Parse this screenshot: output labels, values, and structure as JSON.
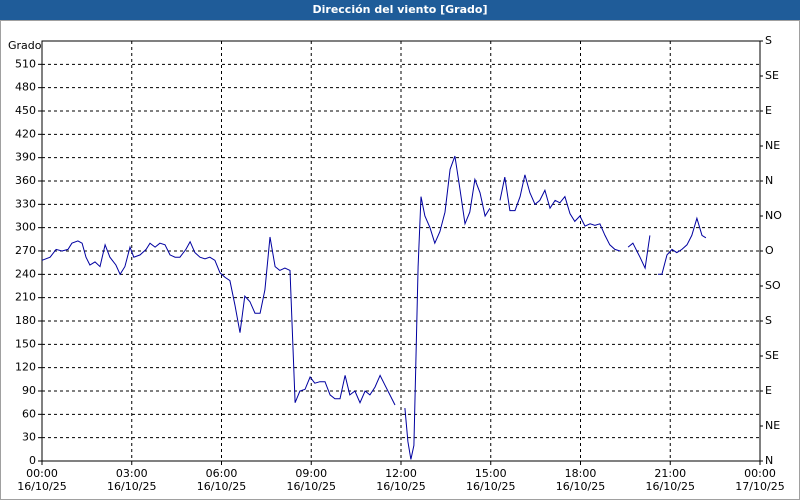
{
  "chart_data": {
    "type": "line",
    "title": "Dirección del viento [Grado]",
    "ylabel": "Grado",
    "xlim": [
      0,
      24
    ],
    "ylim": [
      0,
      540
    ],
    "y2lim": [
      0,
      540
    ],
    "grid": true,
    "xticks": [
      {
        "value": 0,
        "label": "00:00\n16/10/25"
      },
      {
        "value": 3,
        "label": "03:00\n16/10/25"
      },
      {
        "value": 6,
        "label": "06:00\n16/10/25"
      },
      {
        "value": 9,
        "label": "09:00\n16/10/25"
      },
      {
        "value": 12,
        "label": "12:00\n16/10/25"
      },
      {
        "value": 15,
        "label": "15:00\n16/10/25"
      },
      {
        "value": 18,
        "label": "18:00\n16/10/25"
      },
      {
        "value": 21,
        "label": "21:00\n16/10/25"
      },
      {
        "value": 24,
        "label": "00:00\n17/10/25"
      }
    ],
    "yticks": [
      0,
      30,
      60,
      90,
      120,
      150,
      180,
      210,
      240,
      270,
      300,
      330,
      360,
      390,
      420,
      450,
      480,
      510
    ],
    "y2ticks": [
      {
        "value": 0,
        "label": "N"
      },
      {
        "value": 45,
        "label": "NE"
      },
      {
        "value": 90,
        "label": "E"
      },
      {
        "value": 135,
        "label": "SE"
      },
      {
        "value": 180,
        "label": "S"
      },
      {
        "value": 225,
        "label": "SO"
      },
      {
        "value": 270,
        "label": "O"
      },
      {
        "value": 315,
        "label": "NO"
      },
      {
        "value": 360,
        "label": "N"
      },
      {
        "value": 405,
        "label": "NE"
      },
      {
        "value": 450,
        "label": "E"
      },
      {
        "value": 495,
        "label": "SE"
      },
      {
        "value": 540,
        "label": "S"
      }
    ],
    "x": [
      0,
      0.27,
      0.47,
      0.67,
      0.87,
      1.0,
      1.2,
      1.34,
      1.47,
      1.6,
      1.77,
      1.94,
      2.11,
      2.27,
      2.47,
      2.61,
      2.77,
      2.94,
      3.07,
      3.28,
      3.48,
      3.61,
      3.78,
      3.94,
      4.11,
      4.28,
      4.45,
      4.61,
      4.81,
      4.95,
      5.11,
      5.28,
      5.45,
      5.61,
      5.78,
      5.95,
      6.12,
      6.28,
      6.45,
      6.62,
      6.78,
      6.95,
      7.12,
      7.29,
      7.45,
      7.62,
      7.79,
      7.95,
      8.12,
      8.29,
      8.46,
      8.62,
      8.79,
      8.96,
      9.12,
      9.29,
      9.46,
      9.63,
      9.79,
      9.96,
      10.13,
      10.29,
      10.46,
      10.63,
      10.8,
      10.96,
      11.13,
      11.3,
      11.46,
      11.63,
      11.8,
      11.95,
      12.13,
      12.23,
      12.33,
      12.43,
      12.57,
      12.67,
      12.8,
      12.97,
      13.13,
      13.3,
      13.47,
      13.64,
      13.8,
      13.97,
      14.14,
      14.3,
      14.47,
      14.64,
      14.81,
      14.97,
      15.14,
      15.31,
      15.47,
      15.64,
      15.81,
      15.98,
      16.14,
      16.31,
      16.48,
      16.64,
      16.81,
      16.98,
      17.15,
      17.31,
      17.48,
      17.65,
      17.81,
      17.98,
      18.15,
      18.32,
      18.48,
      18.65,
      18.82,
      18.98,
      19.15,
      19.32,
      19.45,
      19.59,
      19.75,
      19.99,
      20.16,
      20.32,
      20.45,
      20.59,
      20.72,
      20.89,
      21.06,
      21.22,
      21.39,
      21.56,
      21.72,
      21.89,
      22.06,
      22.19
    ],
    "series": [
      {
        "color": "#0000a0",
        "values": [
          258,
          262,
          272,
          270,
          272,
          280,
          283,
          280,
          262,
          252,
          256,
          250,
          278,
          262,
          252,
          240,
          250,
          275,
          262,
          265,
          272,
          280,
          275,
          280,
          278,
          265,
          262,
          262,
          272,
          282,
          268,
          262,
          260,
          262,
          258,
          242,
          236,
          232,
          200,
          165,
          212,
          205,
          190,
          190,
          220,
          288,
          250,
          245,
          248,
          245,
          75,
          90,
          92,
          108,
          100,
          102,
          102,
          85,
          80,
          80,
          110,
          85,
          90,
          75,
          90,
          85,
          95,
          110,
          98,
          85,
          72,
          null,
          68,
          25,
          2,
          20,
          250,
          340,
          315,
          300,
          280,
          295,
          320,
          375,
          392,
          350,
          305,
          320,
          362,
          345,
          315,
          325,
          null,
          335,
          365,
          322,
          322,
          340,
          368,
          345,
          330,
          335,
          348,
          325,
          335,
          332,
          340,
          318,
          308,
          315,
          302,
          305,
          303,
          305,
          290,
          278,
          272,
          270,
          null,
          275,
          280,
          262,
          248,
          290,
          null,
          240,
          240,
          265,
          272,
          268,
          272,
          278,
          290,
          312,
          290,
          287
        ]
      }
    ]
  }
}
